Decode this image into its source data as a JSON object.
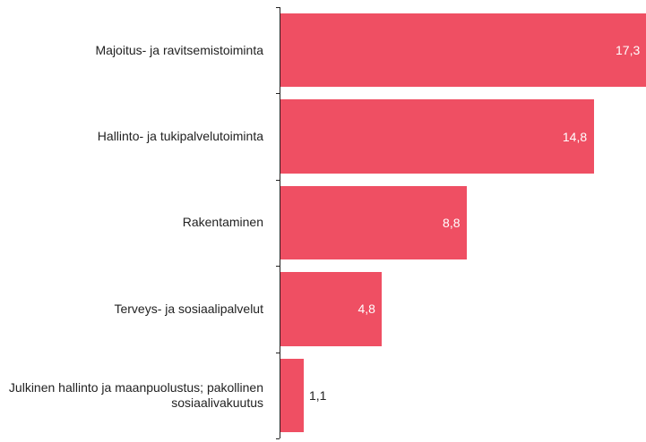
{
  "chart_data": {
    "type": "bar",
    "orientation": "horizontal",
    "categories": [
      "Majoitus- ja ravitsemistoiminta",
      "Hallinto- ja tukipalvelutoiminta",
      "Rakentaminen",
      "Terveys- ja sosiaalipalvelut",
      "Julkinen hallinto ja maanpuolustus; pakollinen sosiaalivakuutus"
    ],
    "values": [
      17.3,
      14.8,
      8.8,
      4.8,
      1.1
    ],
    "value_labels": [
      "17,3",
      "14,8",
      "8,8",
      "4,8",
      "1,1"
    ],
    "color": "#ef4f63"
  }
}
